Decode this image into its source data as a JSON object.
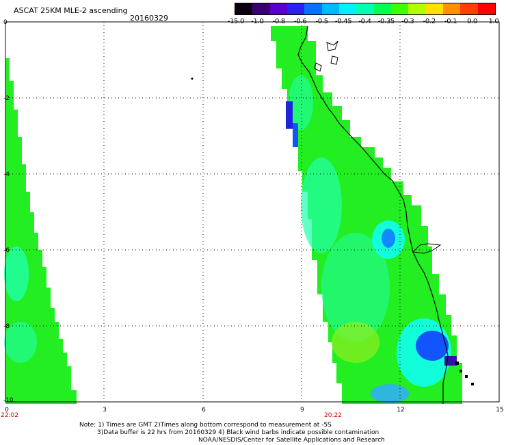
{
  "header": {
    "title": "ASCAT 25KM MLE-2 ascending",
    "date": "20160329"
  },
  "colorbar": {
    "labels": [
      "-15.0",
      "-1.0",
      "-0.8",
      "-0.6",
      "-0.5",
      "-0.45",
      "-0.4",
      "-0.35",
      "-0.3",
      "-0.2",
      "-0.1",
      "0.0",
      "1.0"
    ],
    "colors": [
      "#0a0010",
      "#3a0070",
      "#5a00c8",
      "#2a20f0",
      "#0a70ff",
      "#00b8ff",
      "#00f0ff",
      "#00ffb0",
      "#00ff50",
      "#40ff00",
      "#b0ff00",
      "#ffe000",
      "#ff9000",
      "#ff4000",
      "#ff0000"
    ]
  },
  "axes": {
    "y_ticks": [
      "0",
      "-2",
      "-4",
      "-6",
      "-8",
      "-10"
    ],
    "x_ticks": [
      "0",
      "3",
      "6",
      "9",
      "12",
      "15"
    ],
    "x_times": [
      "22:02",
      "20:22"
    ]
  },
  "map": {
    "lon_range": [
      0,
      15
    ],
    "lat_range": [
      -10,
      0
    ],
    "colors": {
      "land_green": "#22ee22",
      "yellow_green": "#88ee22",
      "cyan_green": "#22ffaa",
      "cyan": "#11ffee",
      "blue": "#1155ff",
      "deep_blue": "#2222dd",
      "coastline": "#000000",
      "grid": "#000000"
    }
  },
  "notes": {
    "line1": "Note: 1) Times are GMT 2)Times along bottom correspond to measurement at -5S",
    "line2": "3)Data buffer is 22 hrs from 20160329 4) Black wind barbs indicate possible contamination",
    "line3": "NOAA/NESDIS/Center for Satellite Applications and Research"
  }
}
